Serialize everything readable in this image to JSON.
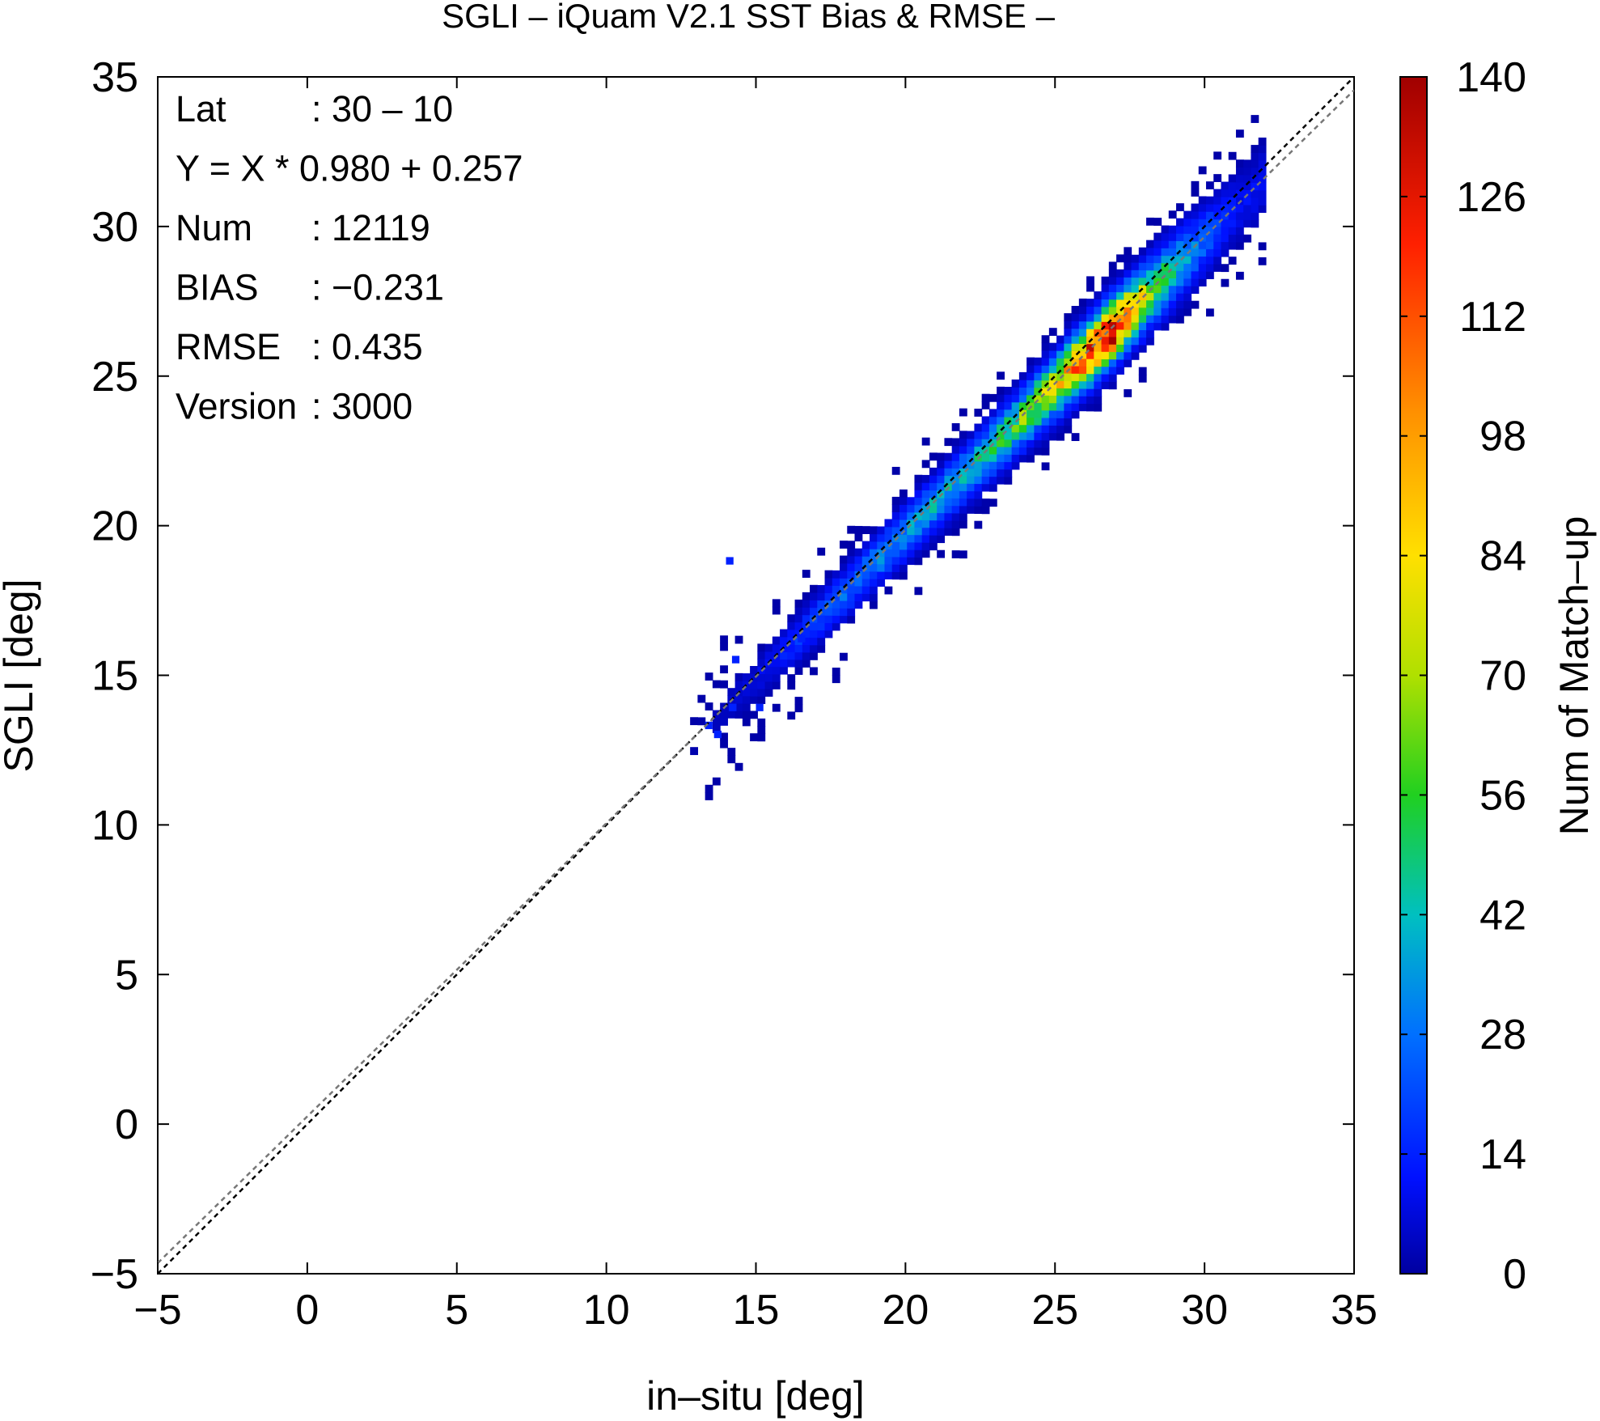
{
  "chart_data": {
    "type": "heatmap",
    "title": "SGLI – iQuam V2.1 SST Bias & RMSE  –",
    "xlabel": "in–situ [deg]",
    "ylabel": "SGLI [deg]",
    "colorbar_label": "Num of Match–up",
    "xlim": [
      -5,
      35
    ],
    "ylim": [
      -5,
      35
    ],
    "x_ticks": [
      -5,
      0,
      5,
      10,
      15,
      20,
      25,
      30,
      35
    ],
    "y_ticks": [
      -5,
      0,
      5,
      10,
      15,
      20,
      25,
      30,
      35
    ],
    "x_tick_labels": [
      "−5",
      "0",
      "5",
      "10",
      "15",
      "20",
      "25",
      "30",
      "35"
    ],
    "y_tick_labels": [
      "−5",
      "0",
      "5",
      "10",
      "15",
      "20",
      "25",
      "30",
      "35"
    ],
    "colorbar_range": [
      0,
      140
    ],
    "colorbar_ticks": [
      "0",
      "14",
      "28",
      "42",
      "56",
      "70",
      "84",
      "98",
      "112",
      "126",
      "140"
    ],
    "colorbar_ticks_values": [
      0,
      14,
      28,
      42,
      56,
      70,
      84,
      98,
      112,
      126,
      140
    ],
    "reference_lines": [
      {
        "slope": 1.0,
        "intercept": 0.0,
        "color": "#000000",
        "style": "dashed"
      },
      {
        "slope": 0.98,
        "intercept": 0.257,
        "color": "#777777",
        "style": "dashed"
      }
    ],
    "density_ridge": [
      {
        "x": 13.0,
        "y": 13.0,
        "count": 2
      },
      {
        "x": 15.0,
        "y": 14.9,
        "count": 8
      },
      {
        "x": 16.5,
        "y": 16.4,
        "count": 18
      },
      {
        "x": 17.5,
        "y": 17.4,
        "count": 25
      },
      {
        "x": 19.0,
        "y": 18.9,
        "count": 30
      },
      {
        "x": 20.5,
        "y": 20.3,
        "count": 36
      },
      {
        "x": 22.0,
        "y": 21.8,
        "count": 42
      },
      {
        "x": 23.5,
        "y": 23.3,
        "count": 55
      },
      {
        "x": 25.0,
        "y": 24.8,
        "count": 80
      },
      {
        "x": 26.0,
        "y": 25.8,
        "count": 120
      },
      {
        "x": 26.8,
        "y": 26.6,
        "count": 132
      },
      {
        "x": 28.0,
        "y": 27.7,
        "count": 65
      },
      {
        "x": 29.5,
        "y": 29.1,
        "count": 30
      },
      {
        "x": 31.0,
        "y": 30.5,
        "count": 10
      }
    ],
    "grid": false,
    "legend": "none"
  },
  "stats": [
    {
      "label": "Lat",
      "value": ": 30 – 10"
    },
    {
      "label": "Y = X * 0.980 + 0.257",
      "value": ""
    },
    {
      "label": "Num",
      "value": ": 12119"
    },
    {
      "label": "BIAS",
      "value": ": −0.231"
    },
    {
      "label": "RMSE",
      "value": ": 0.435"
    },
    {
      "label": "Version",
      "value": ": 3000"
    }
  ]
}
